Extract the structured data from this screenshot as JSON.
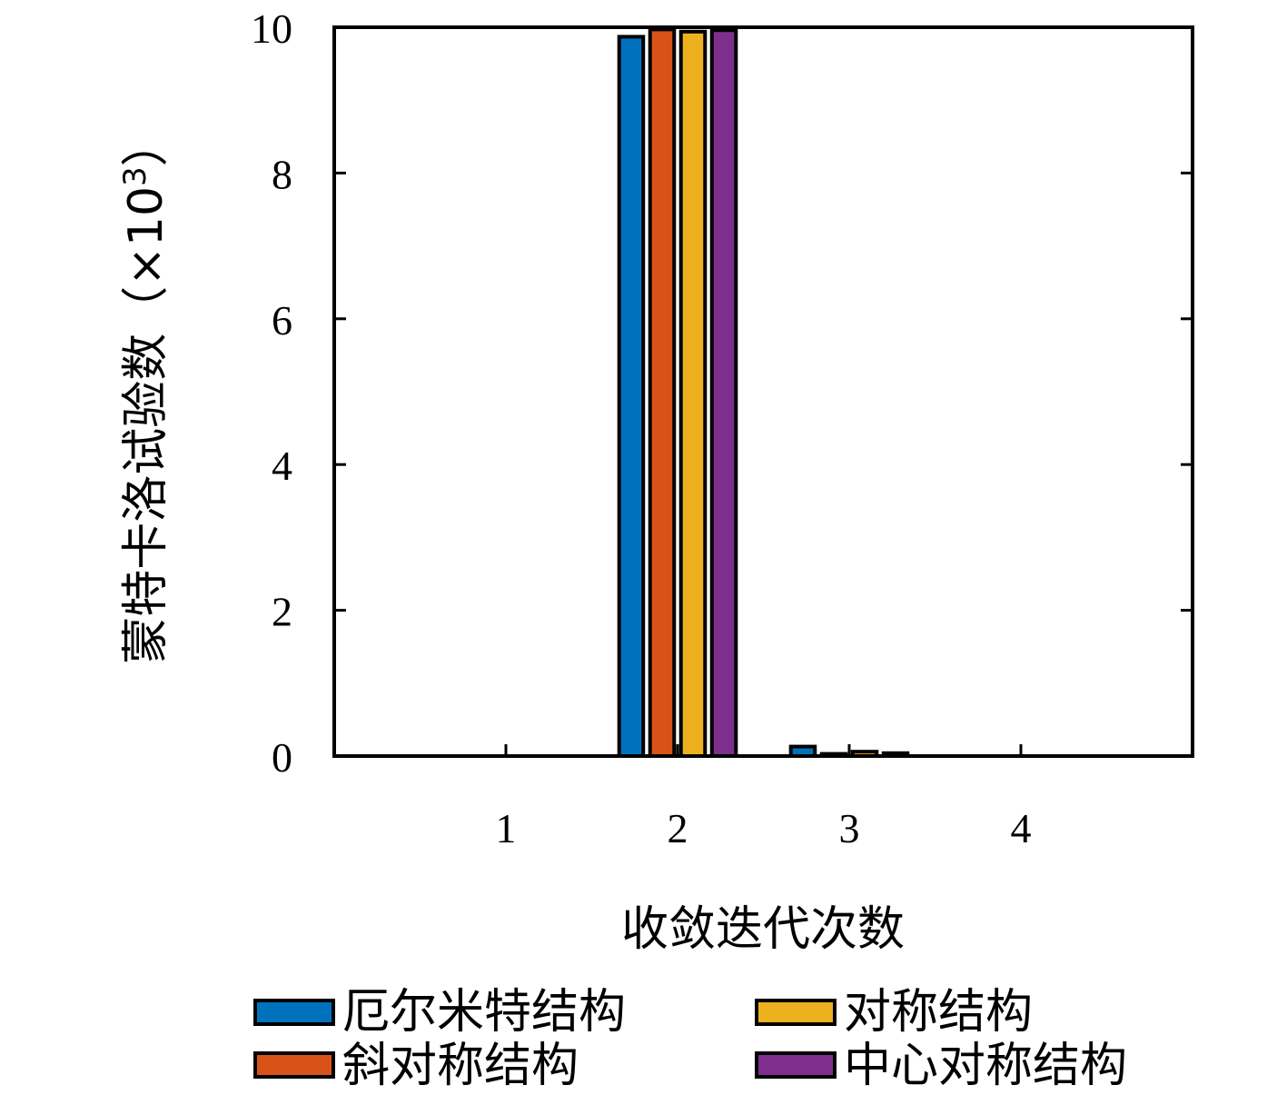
{
  "chart_data": {
    "type": "bar",
    "categories": [
      "1",
      "2",
      "3",
      "4"
    ],
    "series": [
      {
        "name": "厄尔米特结构",
        "color": "#0072BD",
        "values": [
          0,
          9.87,
          0.13,
          0
        ]
      },
      {
        "name": "斜对称结构",
        "color": "#D95319",
        "values": [
          0,
          9.97,
          0.03,
          0
        ]
      },
      {
        "name": "对称结构",
        "color": "#EDB120",
        "values": [
          0,
          9.94,
          0.06,
          0
        ]
      },
      {
        "name": "中心对称结构",
        "color": "#7E2F8E",
        "values": [
          0,
          9.96,
          0.04,
          0
        ]
      }
    ],
    "xlabel": "收敛迭代次数",
    "ylabel": "蒙特卡洛试验数",
    "ylabel_unit_prefix": "（×10",
    "ylabel_unit_exp": "3",
    "ylabel_unit_suffix": "）",
    "ylim": [
      0,
      10
    ],
    "xlim": [
      0,
      5
    ],
    "yticks": [
      0,
      2,
      4,
      6,
      8,
      10
    ],
    "grid": false,
    "legend_position": "bottom"
  }
}
